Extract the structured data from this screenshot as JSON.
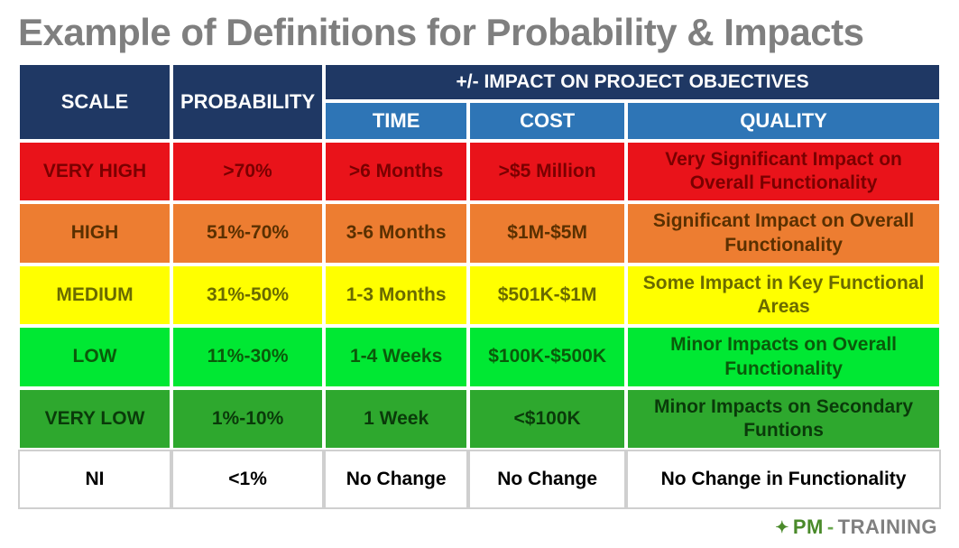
{
  "title": "Example of Definitions for Probability & Impacts",
  "header": {
    "scale": "SCALE",
    "probability": "PROBABILITY",
    "impact_span": "+/- IMPACT ON PROJECT OBJECTIVES",
    "time": "TIME",
    "cost": "COST",
    "quality": "QUALITY"
  },
  "colors": {
    "header_dark": "#1f3864",
    "header_light": "#2e75b6",
    "row_bg": {
      "veryhigh": "#e9131a",
      "high": "#ed7d31",
      "medium": "#ffff00",
      "low": "#00e833",
      "verylow": "#2ea82e",
      "ni": "#ffffff"
    },
    "row_text": {
      "veryhigh": "#7a0000",
      "high": "#5a3000",
      "medium": "#6a6a00",
      "low": "#0a5a0a",
      "verylow": "#0a3a0a",
      "ni": "#000000"
    }
  },
  "rows": [
    {
      "key": "veryhigh",
      "scale": "VERY HIGH",
      "probability": ">70%",
      "time": ">6 Months",
      "cost": ">$5 Million",
      "quality": "Very Significant Impact on Overall Functionality"
    },
    {
      "key": "high",
      "scale": "HIGH",
      "probability": "51%-70%",
      "time": "3-6 Months",
      "cost": "$1M-$5M",
      "quality": "Significant Impact on Overall Functionality"
    },
    {
      "key": "medium",
      "scale": "MEDIUM",
      "probability": "31%-50%",
      "time": "1-3 Months",
      "cost": "$501K-$1M",
      "quality": "Some Impact in Key Functional Areas"
    },
    {
      "key": "low",
      "scale": "LOW",
      "probability": "11%-30%",
      "time": "1-4 Weeks",
      "cost": "$100K-$500K",
      "quality": "Minor Impacts on Overall Functionality"
    },
    {
      "key": "verylow",
      "scale": "VERY LOW",
      "probability": "1%-10%",
      "time": "1 Week",
      "cost": "<$100K",
      "quality": "Minor Impacts on Secondary Funtions"
    },
    {
      "key": "ni",
      "scale": "NI",
      "probability": "<1%",
      "time": "No Change",
      "cost": "No Change",
      "quality": "No Change in Functionality"
    }
  ],
  "logo": {
    "pm": "PM",
    "dash": "-",
    "training": "TRAINING"
  }
}
